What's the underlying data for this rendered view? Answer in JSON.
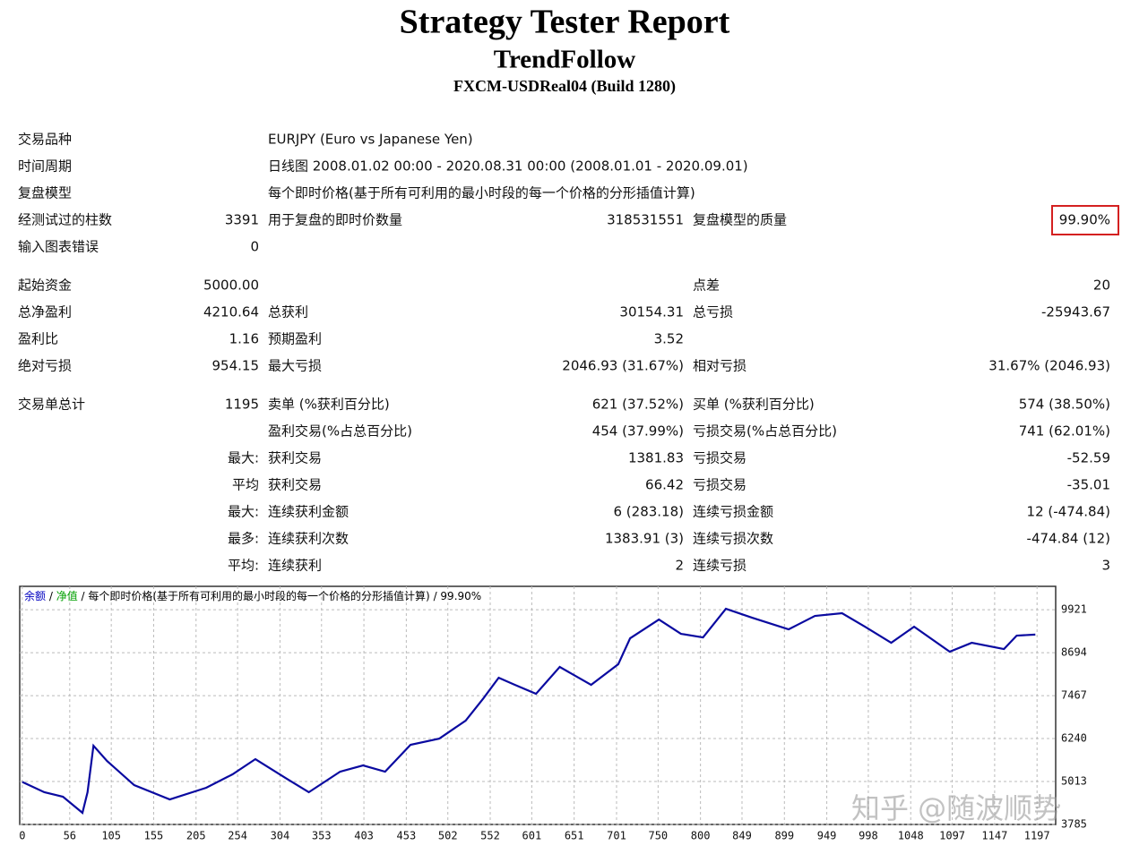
{
  "header": {
    "title": "Strategy Tester Report",
    "subtitle": "TrendFollow",
    "server": "FXCM-USDReal04 (Build 1280)"
  },
  "table": {
    "sections": [
      [
        [
          "交易品种",
          null,
          "EURJPY (Euro vs Japanese Yen)",
          null,
          null,
          null
        ],
        [
          "时间周期",
          null,
          "日线图 2008.01.02 00:00 - 2020.08.31 00:00 (2008.01.01 - 2020.09.01)",
          null,
          null,
          null
        ],
        [
          "复盘模型",
          null,
          "每个即时价格(基于所有可利用的最小时段的每一个价格的分形插值计算)",
          null,
          null,
          null
        ],
        [
          "经测试过的柱数",
          "3391",
          "用于复盘的即时价数量",
          "318531551",
          "复盘模型的质量",
          "99.90%"
        ],
        [
          "输入图表错误",
          "0",
          null,
          null,
          null,
          null
        ]
      ],
      [
        [
          "起始资金",
          "5000.00",
          null,
          null,
          "点差",
          "20"
        ],
        [
          "总净盈利",
          "4210.64",
          "总获利",
          "30154.31",
          "总亏损",
          "-25943.67"
        ],
        [
          "盈利比",
          "1.16",
          "预期盈利",
          "3.52",
          null,
          null
        ],
        [
          "绝对亏损",
          "954.15",
          "最大亏损",
          "2046.93 (31.67%)",
          "相对亏损",
          "31.67% (2046.93)"
        ]
      ],
      [
        [
          "交易单总计",
          "1195",
          "卖单 (%获利百分比)",
          "621 (37.52%)",
          "买单 (%获利百分比)",
          "574 (38.50%)"
        ],
        [
          null,
          null,
          "盈利交易(%占总百分比)",
          "454 (37.99%)",
          "亏损交易(%占总百分比)",
          "741 (62.01%)"
        ],
        [
          null,
          "最大:",
          "获利交易",
          "1381.83",
          "亏损交易",
          "-52.59"
        ],
        [
          null,
          "平均",
          "获利交易",
          "66.42",
          "亏损交易",
          "-35.01"
        ],
        [
          null,
          "最大:",
          "连续获利金额",
          "6 (283.18)",
          "连续亏损金额",
          "12 (-474.84)"
        ],
        [
          null,
          "最多:",
          "连续获利次数",
          "1383.91 (3)",
          "连续亏损次数",
          "-474.84 (12)"
        ],
        [
          null,
          "平均:",
          "连续获利",
          "2",
          "连续亏损",
          "3"
        ]
      ]
    ]
  },
  "chart_data": {
    "type": "line",
    "caption": [
      {
        "text": "余额",
        "color": "#0000c0"
      },
      {
        "text": "净值",
        "color": "#00a000"
      },
      {
        "text": "每个即时价格(基于所有可利用的最小时段的每一个价格的分形插值计算)",
        "color": "#000000"
      },
      {
        "text": "99.90%",
        "color": "#000000"
      }
    ],
    "separator": " / ",
    "x": [
      0,
      26,
      48,
      71,
      77,
      84,
      100,
      132,
      174,
      217,
      248,
      275,
      312,
      338,
      375,
      402,
      428,
      458,
      492,
      523,
      544,
      562,
      581,
      606,
      634,
      671,
      703,
      717,
      751,
      777,
      803,
      830,
      861,
      904,
      935,
      967,
      994,
      1025,
      1052,
      1094,
      1120,
      1158,
      1173,
      1195
    ],
    "series": [
      {
        "name": "余额",
        "color": "#0a0aa0",
        "values": [
          5000,
          4706,
          4578,
          4117,
          4706,
          6036,
          5600,
          4910,
          4500,
          4834,
          5217,
          5652,
          5090,
          4706,
          5294,
          5473,
          5294,
          6061,
          6240,
          6752,
          7391,
          7979,
          7775,
          7519,
          8286,
          7775,
          8363,
          9105,
          9642,
          9233,
          9130,
          9949,
          9693,
          9361,
          9744,
          9821,
          9437,
          8977,
          9437,
          8721,
          8977,
          8798,
          9182,
          9211
        ]
      }
    ],
    "xlim": [
      -3,
      1219
    ],
    "xticks": [
      0,
      56,
      105,
      155,
      205,
      254,
      304,
      353,
      403,
      453,
      502,
      552,
      601,
      651,
      701,
      750,
      800,
      849,
      899,
      949,
      998,
      1048,
      1097,
      1147,
      1197
    ],
    "ylim": [
      3785,
      10590
    ],
    "yticks": [
      3785,
      5013,
      6240,
      7467,
      8694,
      9921
    ],
    "grid": true,
    "watermark": "知乎 @随波顺势"
  }
}
